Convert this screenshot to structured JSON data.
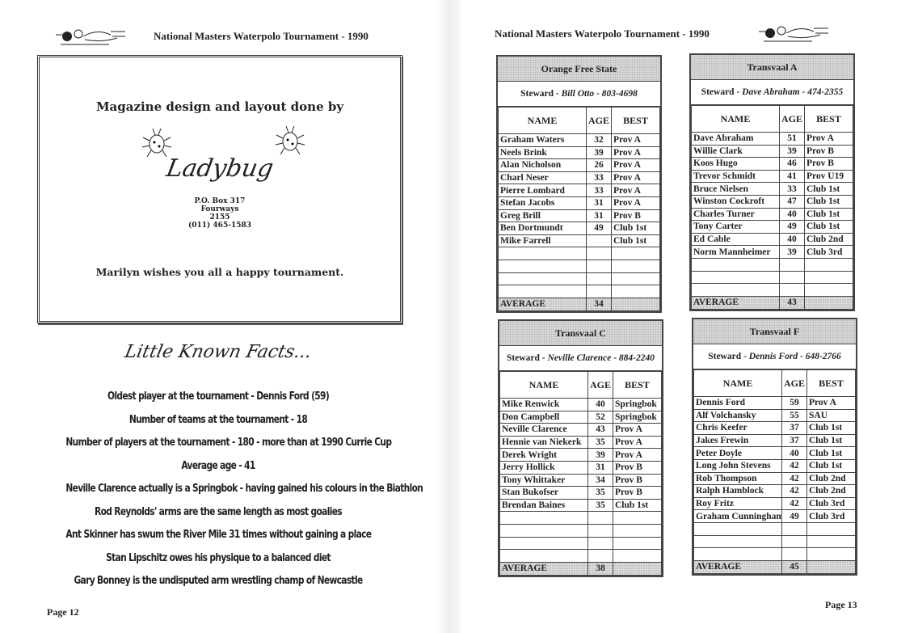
{
  "header": {
    "title": "National Masters Waterpolo Tournament - 1990"
  },
  "ad": {
    "title": "Magazine design and layout done by",
    "logo_text": "Ladybug",
    "address": [
      "P.O. Box 317",
      "Fourways",
      "2155",
      "(011) 465-1583"
    ],
    "footer": "Marilyn wishes you all a happy tournament."
  },
  "facts": {
    "title": "Little Known Facts...",
    "items": [
      "Oldest player at the tournament - Dennis Ford (59)",
      "Number of teams at the tournament - 18",
      "Number of players at the tournament - 180 - more than at 1990 Currie Cup",
      "Average age - 41",
      "Neville Clarence actually  is a Springbok - having gained his colours in the Biathlon",
      "Rod Reynolds' arms are the same length as most goalies",
      "Ant Skinner has swum the River Mile 31 times without gaining a place",
      "Stan Lipschitz owes his physique to a balanced diet",
      "Gary Bonney is the undisputed arm wrestling champ of Newcastle"
    ]
  },
  "pages": {
    "left": "Page 12",
    "right": "Page 13"
  },
  "columns": {
    "name": "NAME",
    "age": "AGE",
    "best": "BEST",
    "average": "AVERAGE",
    "steward": "Steward - "
  },
  "teams": [
    {
      "name": "Orange Free State",
      "steward": "Bill Otto",
      "phone": "803-4698",
      "average": "34",
      "players": [
        [
          "Graham Waters",
          "32",
          "Prov A"
        ],
        [
          "Neels Brink",
          "39",
          "Prov A"
        ],
        [
          "Alan Nicholson",
          "26",
          "Prov A"
        ],
        [
          "Charl Neser",
          "33",
          "Prov A"
        ],
        [
          "Pierre Lombard",
          "33",
          "Prov A"
        ],
        [
          "Stefan Jacobs",
          "31",
          "Prov A"
        ],
        [
          "Greg Brill",
          "31",
          "Prov B"
        ],
        [
          "Ben Dortmundt",
          "49",
          "Club 1st"
        ],
        [
          "Mike Farrell",
          "",
          "Club 1st"
        ]
      ]
    },
    {
      "name": "Transvaal A",
      "steward": "Dave Abraham",
      "phone": "474-2355",
      "average": "43",
      "players": [
        [
          "Dave Abraham",
          "51",
          "Prov A"
        ],
        [
          "Willie Clark",
          "39",
          "Prov B"
        ],
        [
          "Koos Hugo",
          "46",
          "Prov B"
        ],
        [
          "Trevor Schmidt",
          "41",
          "Prov U19"
        ],
        [
          "Bruce Nielsen",
          "33",
          "Club 1st"
        ],
        [
          "Winston Cockroft",
          "47",
          "Club 1st"
        ],
        [
          "Charles Turner",
          "40",
          "Club 1st"
        ],
        [
          "Tony Carter",
          "49",
          "Club 1st"
        ],
        [
          "Ed Cable",
          "40",
          "Club 2nd"
        ],
        [
          "Norm Mannheimer",
          "39",
          "Club 3rd"
        ]
      ]
    },
    {
      "name": "Transvaal C",
      "steward": "Neville Clarence",
      "phone": "884-2240",
      "average": "38",
      "players": [
        [
          "Mike Renwick",
          "40",
          "Springbok"
        ],
        [
          "Don Campbell",
          "52",
          "Springbok"
        ],
        [
          "Neville Clarence",
          "43",
          "Prov A"
        ],
        [
          "Hennie van Niekerk",
          "35",
          "Prov A"
        ],
        [
          "Derek Wright",
          "39",
          "Prov A"
        ],
        [
          "Jerry Hollick",
          "31",
          "Prov B"
        ],
        [
          "Tony Whittaker",
          "34",
          "Prov B"
        ],
        [
          "Stan Bukofser",
          "35",
          "Prov B"
        ],
        [
          "Brendan Baines",
          "35",
          "Club 1st"
        ]
      ]
    },
    {
      "name": "Transvaal F",
      "steward": "Dennis Ford",
      "phone": "648-2766",
      "average": "45",
      "players": [
        [
          "Dennis Ford",
          "59",
          "Prov A"
        ],
        [
          "Alf Volchansky",
          "55",
          "SAU"
        ],
        [
          "Chris Keefer",
          "37",
          "Club 1st"
        ],
        [
          "Jakes Frewin",
          "37",
          "Club 1st"
        ],
        [
          "Peter Doyle",
          "40",
          "Club 1st"
        ],
        [
          "Long John Stevens",
          "42",
          "Club 1st"
        ],
        [
          "Rob Thompson",
          "42",
          "Club 2nd"
        ],
        [
          "Ralph Hamblock",
          "42",
          "Club 2nd"
        ],
        [
          "Roy Fritz",
          "42",
          "Club 3rd"
        ],
        [
          "Graham Cunningham",
          "49",
          "Club 3rd"
        ]
      ]
    }
  ]
}
